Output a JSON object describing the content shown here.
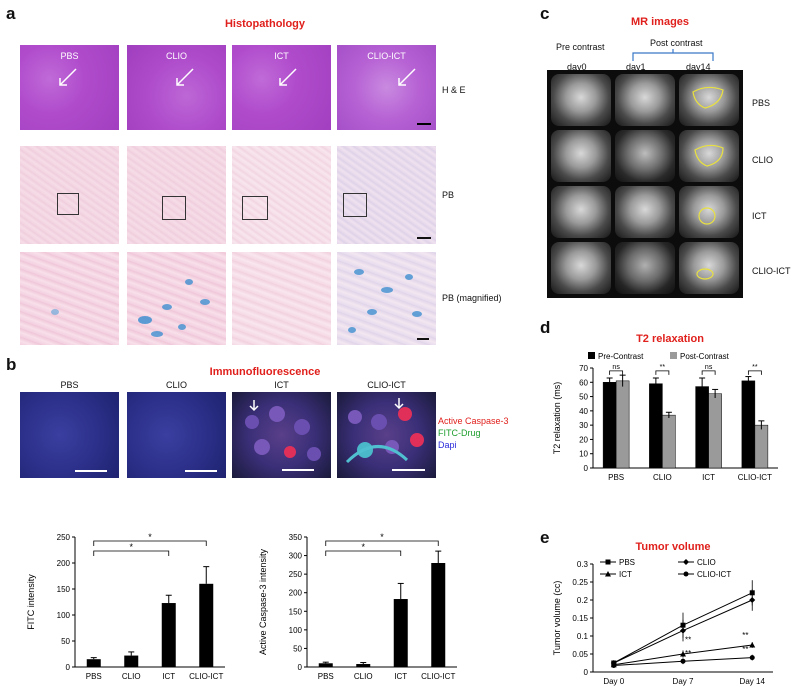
{
  "panels": {
    "a": {
      "letter": "a",
      "title": "Histopathology",
      "columns": [
        "PBS",
        "CLIO",
        "ICT",
        "CLIO-ICT"
      ],
      "row_labels": [
        "H & E",
        "PB",
        "PB (magnified)"
      ]
    },
    "b": {
      "letter": "b",
      "title": "Immunofluorescence",
      "columns": [
        "PBS",
        "CLIO",
        "ICT",
        "CLIO-ICT"
      ],
      "legend": [
        {
          "label": "Active Caspase-3",
          "color": "#e0201c"
        },
        {
          "label": "FITC-Drug",
          "color": "#1e9e2e"
        },
        {
          "label": "Dapi",
          "color": "#2a2adc"
        }
      ]
    },
    "c": {
      "letter": "c",
      "title": "MR images",
      "pre_label": "Pre contrast",
      "post_label": "Post contrast",
      "days": [
        "day0",
        "day1",
        "day14"
      ],
      "rows": [
        "PBS",
        "CLIO",
        "ICT",
        "CLIO-ICT"
      ]
    },
    "d": {
      "letter": "d"
    },
    "e": {
      "letter": "e"
    }
  },
  "chart_data": [
    {
      "id": "fitc",
      "type": "bar",
      "categories": [
        "PBS",
        "CLIO",
        "ICT",
        "CLIO-ICT"
      ],
      "values": [
        15,
        22,
        123,
        160
      ],
      "errors": [
        3,
        7,
        15,
        33
      ],
      "ylabel": "FITC intensity",
      "ylim": [
        0,
        250
      ],
      "yticks": [
        0,
        50,
        100,
        150,
        200,
        250
      ],
      "significance": [
        {
          "from": 0,
          "to": 2,
          "label": "*"
        },
        {
          "from": 0,
          "to": 3,
          "label": "*"
        }
      ],
      "color": "#000000"
    },
    {
      "id": "caspase",
      "type": "bar",
      "categories": [
        "PBS",
        "CLIO",
        "ICT",
        "CLIO-ICT"
      ],
      "values": [
        10,
        8,
        183,
        280
      ],
      "errors": [
        3,
        4,
        42,
        32
      ],
      "ylabel": "Active Caspase-3 intensity",
      "ylim": [
        0,
        350
      ],
      "yticks": [
        0,
        50,
        100,
        150,
        200,
        250,
        300,
        350
      ],
      "significance": [
        {
          "from": 0,
          "to": 2,
          "label": "*"
        },
        {
          "from": 0,
          "to": 3,
          "label": "*"
        }
      ],
      "color": "#000000"
    },
    {
      "id": "t2",
      "type": "bar",
      "title": "T2 relaxation",
      "categories": [
        "PBS",
        "CLIO",
        "ICT",
        "CLIO-ICT"
      ],
      "series": [
        {
          "name": "Pre-Contrast",
          "values": [
            60,
            59,
            57,
            61
          ],
          "errors": [
            3,
            4,
            6,
            3
          ],
          "color": "#000000"
        },
        {
          "name": "Post-Contrast",
          "values": [
            61,
            37,
            52,
            30
          ],
          "errors": [
            4,
            2,
            3,
            3
          ],
          "color": "#9a9a9a"
        }
      ],
      "ylabel": "T2 relaxation (ms)",
      "ylim": [
        0,
        70
      ],
      "yticks": [
        0,
        10,
        20,
        30,
        40,
        50,
        60,
        70
      ],
      "significance_labels": [
        "ns",
        "**",
        "ns",
        "**"
      ],
      "legend_position": "top"
    },
    {
      "id": "tumor",
      "type": "line",
      "title": "Tumor volume",
      "categories": [
        "Day 0",
        "Day 7",
        "Day 14"
      ],
      "series": [
        {
          "name": "PBS",
          "values": [
            0.025,
            0.13,
            0.22
          ],
          "errors": [
            0.005,
            0.035,
            0.035
          ],
          "marker": "square"
        },
        {
          "name": "ICT",
          "values": [
            0.02,
            0.05,
            0.075
          ],
          "errors": [
            0.004,
            0.01,
            0.008
          ],
          "marker": "triangle"
        },
        {
          "name": "CLIO",
          "values": [
            0.025,
            0.115,
            0.2
          ],
          "errors": [
            0.005,
            0.03,
            0.03
          ],
          "marker": "diamond"
        },
        {
          "name": "CLIO-ICT",
          "values": [
            0.018,
            0.03,
            0.04
          ],
          "errors": [
            0.004,
            0.008,
            0.008
          ],
          "marker": "circle"
        }
      ],
      "ylabel": "Tumor volume (cc)",
      "ylim": [
        0,
        0.3
      ],
      "yticks": [
        0,
        0.05,
        0.1,
        0.15,
        0.2,
        0.25,
        0.3
      ],
      "significance_labels": [
        "**",
        "**",
        "**",
        "**"
      ]
    }
  ]
}
